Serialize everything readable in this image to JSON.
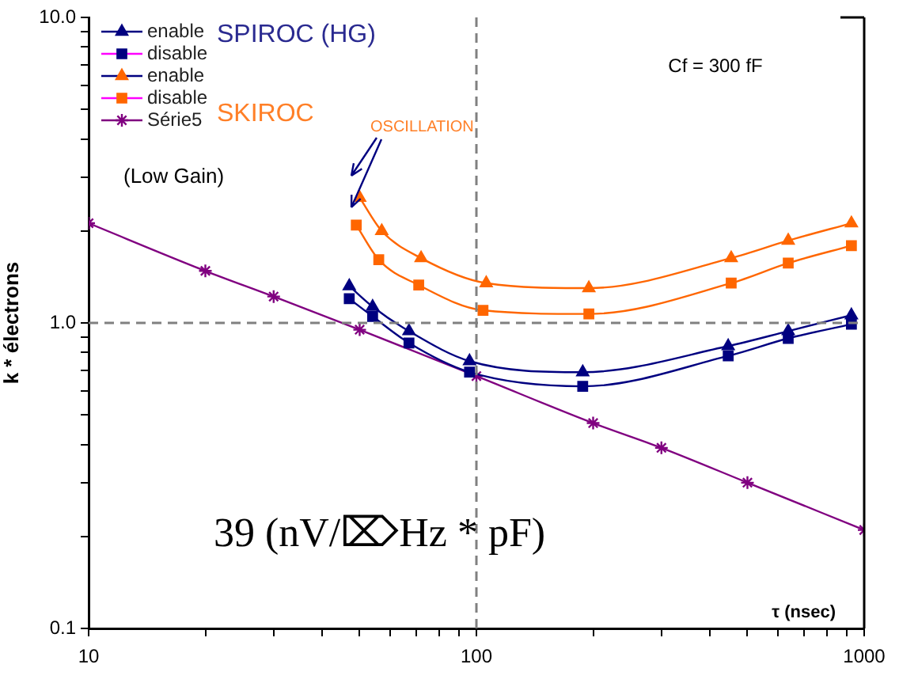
{
  "chart_data": {
    "type": "line",
    "ylabel": "k * électrons",
    "xlabel": "τ (nsec)",
    "log": "xy",
    "legend": "top left",
    "line_style": "solid",
    "xlim": [
      10,
      1000
    ],
    "ylim": [
      0.1,
      10
    ],
    "xticks": [
      10,
      {
        "value": 20,
        "label": null
      },
      {
        "value": 30,
        "label": null
      },
      {
        "value": 40,
        "label": null
      },
      {
        "value": 50,
        "label": null
      },
      {
        "value": 60,
        "label": null
      },
      {
        "value": 70,
        "label": null
      },
      {
        "value": 80,
        "label": null
      },
      {
        "value": 90,
        "label": null
      },
      100,
      {
        "value": 200,
        "label": null
      },
      {
        "value": 300,
        "label": null
      },
      {
        "value": 400,
        "label": null
      },
      {
        "value": 500,
        "label": null
      },
      {
        "value": 600,
        "label": null
      },
      {
        "value": 700,
        "label": null
      },
      {
        "value": 800,
        "label": null
      },
      {
        "value": 900,
        "label": null
      },
      1000
    ],
    "yticks": [
      {
        "value": 0.1,
        "label": "0.1"
      },
      {
        "value": 0.2,
        "label": null
      },
      {
        "value": 0.3,
        "label": null
      },
      {
        "value": 0.4,
        "label": null
      },
      {
        "value": 0.5,
        "label": null
      },
      {
        "value": 0.6,
        "label": null
      },
      {
        "value": 0.7,
        "label": null
      },
      {
        "value": 0.8,
        "label": null
      },
      {
        "value": 0.9,
        "label": null
      },
      {
        "value": 1,
        "label": "1.0"
      },
      {
        "value": 2,
        "label": null
      },
      {
        "value": 3,
        "label": null
      },
      {
        "value": 4,
        "label": null
      },
      {
        "value": 5,
        "label": null
      },
      {
        "value": 6,
        "label": null
      },
      {
        "value": 7,
        "label": null
      },
      {
        "value": 8,
        "label": null
      },
      {
        "value": 9,
        "label": null
      },
      {
        "value": 10,
        "label": "10.0"
      }
    ],
    "series": [
      {
        "name": "enable",
        "color": "#000080",
        "marker": "triangle",
        "x": [
          47,
          54,
          67,
          96,
          188,
          446,
          637,
          927
        ],
        "values": [
          1.32,
          1.13,
          0.94,
          0.75,
          0.69,
          0.84,
          0.94,
          1.06
        ]
      },
      {
        "name": "disable",
        "color": "#000080",
        "marker": "square",
        "x": [
          47,
          54,
          67,
          96,
          188,
          446,
          637,
          927
        ],
        "values": [
          1.2,
          1.05,
          0.86,
          0.69,
          0.62,
          0.78,
          0.89,
          0.99
        ]
      },
      {
        "name": "enable",
        "color": "#ff6600",
        "marker": "triangle",
        "x": [
          50,
          57,
          72,
          106,
          195,
          454,
          637,
          927
        ],
        "values": [
          2.57,
          2.0,
          1.63,
          1.35,
          1.3,
          1.63,
          1.86,
          2.12
        ]
      },
      {
        "name": "disable",
        "color": "#ff6600",
        "marker": "square",
        "x": [
          49,
          56,
          71,
          104,
          195,
          454,
          637,
          927
        ],
        "values": [
          2.09,
          1.61,
          1.33,
          1.1,
          1.07,
          1.35,
          1.57,
          1.79
        ]
      },
      {
        "name": "Série5",
        "color": "#800080",
        "marker": "cross",
        "x": [
          10,
          20,
          30,
          50,
          100,
          200,
          300,
          500,
          1000
        ],
        "values": [
          2.12,
          1.48,
          1.22,
          0.95,
          0.67,
          0.47,
          0.39,
          0.3,
          0.21
        ]
      }
    ],
    "ref_lines": [
      {
        "axis": "y",
        "value": 1,
        "color": "#808080",
        "line_style": "dashed"
      },
      {
        "axis": "x",
        "value": 100,
        "color": "#808080",
        "line_style": "dashed"
      }
    ],
    "annotations": [
      "SPIROC (HG)",
      "SKIROC",
      "OSCILLATION",
      "(Low Gain)",
      "Cf = 300 fF",
      "39 (nV/⌦Hz * pF)"
    ]
  }
}
